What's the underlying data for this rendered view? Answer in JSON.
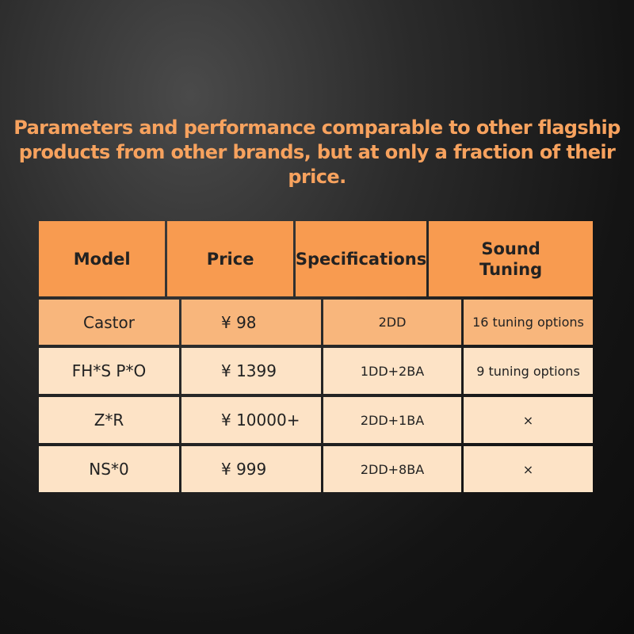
{
  "header": {
    "title_lines": [
      "Parameters and performance comparable to other flagship",
      "products from other brands, but at only a fraction of their price."
    ]
  },
  "table": {
    "columns": [
      "Model",
      "Price",
      "Specifications",
      "Sound Tuning"
    ],
    "rows": [
      [
        "Castor",
        "¥ 98",
        "2DD",
        "16 tuning options"
      ],
      [
        "FH*S P*O",
        "¥ 1399",
        "1DD+2BA",
        "9 tuning options"
      ],
      [
        "Z*R",
        "¥ 10000+",
        "2DD+1BA",
        "×"
      ],
      [
        "NS*0",
        "¥ 999",
        "2DD+8BA",
        "×"
      ]
    ]
  }
}
